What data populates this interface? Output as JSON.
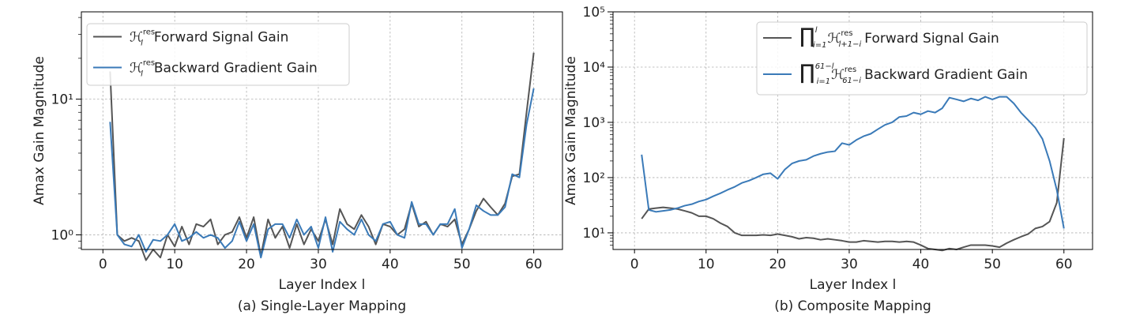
{
  "chart_data": [
    {
      "type": "line",
      "caption": "(a) Single-Layer Mapping",
      "xlabel": "Layer Index l",
      "ylabel": "Amax Gain Magnitude",
      "xlim": [
        -3,
        64
      ],
      "ylim": [
        0.78,
        44
      ],
      "yscale": "log",
      "xticks": [
        0,
        10,
        20,
        30,
        40,
        50,
        60
      ],
      "xtick_labels": [
        "0",
        "10",
        "20",
        "30",
        "40",
        "50",
        "60"
      ],
      "yticks": [
        1,
        10
      ],
      "ytick_labels": [
        "10⁰",
        "10¹"
      ],
      "grid": true,
      "legend_position": "top-left",
      "x": [
        1,
        2,
        3,
        4,
        5,
        6,
        7,
        8,
        9,
        10,
        11,
        12,
        13,
        14,
        15,
        16,
        17,
        18,
        19,
        20,
        21,
        22,
        23,
        24,
        25,
        26,
        27,
        28,
        29,
        30,
        31,
        32,
        33,
        34,
        35,
        36,
        37,
        38,
        39,
        40,
        41,
        42,
        43,
        44,
        45,
        46,
        47,
        48,
        49,
        50,
        51,
        52,
        53,
        54,
        55,
        56,
        57,
        58,
        59,
        60
      ],
      "series": [
        {
          "name": "H_l^res Forward Signal Gain",
          "legend_math": "ℋ",
          "legend_sub": "l",
          "legend_sup": "res",
          "legend_label": "Forward Signal Gain",
          "color": "#555555",
          "values": [
            16,
            1.0,
            0.9,
            0.95,
            0.9,
            0.65,
            0.78,
            0.68,
            1.0,
            0.82,
            1.15,
            0.85,
            1.2,
            1.15,
            1.3,
            0.85,
            1.0,
            1.05,
            1.35,
            0.95,
            1.35,
            0.7,
            1.3,
            0.95,
            1.15,
            0.8,
            1.2,
            0.85,
            1.1,
            0.9,
            1.3,
            0.85,
            1.55,
            1.2,
            1.1,
            1.4,
            1.15,
            0.85,
            1.2,
            1.15,
            1.0,
            1.1,
            1.7,
            1.15,
            1.25,
            1.0,
            1.2,
            1.15,
            1.3,
            0.85,
            1.1,
            1.5,
            1.85,
            1.6,
            1.4,
            1.7,
            2.7,
            2.8,
            8,
            22
          ]
        },
        {
          "name": "H_l^res Backward Gradient Gain",
          "legend_math": "ℋ",
          "legend_sub": "l",
          "legend_sup": "res",
          "legend_label": "Backward Gradient Gain",
          "color": "#3a7ab8",
          "values": [
            6.8,
            1.0,
            0.85,
            0.82,
            1.0,
            0.75,
            0.92,
            0.9,
            1.0,
            1.2,
            0.9,
            0.95,
            1.05,
            0.95,
            1.0,
            0.95,
            0.8,
            0.9,
            1.25,
            0.9,
            1.2,
            0.68,
            1.1,
            1.2,
            1.2,
            0.95,
            1.3,
            1.0,
            1.15,
            0.8,
            1.35,
            0.75,
            1.25,
            1.1,
            1.0,
            1.3,
            1.0,
            0.9,
            1.2,
            1.25,
            1.0,
            0.95,
            1.75,
            1.2,
            1.2,
            1.0,
            1.2,
            1.2,
            1.55,
            0.8,
            1.1,
            1.65,
            1.5,
            1.4,
            1.4,
            1.6,
            2.8,
            2.65,
            6.5,
            12
          ]
        }
      ]
    },
    {
      "type": "line",
      "caption": "(b) Composite Mapping",
      "xlabel": "Layer Index l",
      "ylabel": "Amax Gain Magnitude",
      "xlim": [
        -3,
        64
      ],
      "ylim": [
        5,
        100000
      ],
      "yscale": "log",
      "xticks": [
        0,
        10,
        20,
        30,
        40,
        50,
        60
      ],
      "xtick_labels": [
        "0",
        "10",
        "20",
        "30",
        "40",
        "50",
        "60"
      ],
      "yticks": [
        10,
        100,
        1000,
        10000,
        100000
      ],
      "ytick_labels": [
        "10¹",
        "10²",
        "10³",
        "10⁴",
        "10⁵"
      ],
      "grid": true,
      "legend_position": "top-right",
      "x": [
        1,
        2,
        3,
        4,
        5,
        6,
        7,
        8,
        9,
        10,
        11,
        12,
        13,
        14,
        15,
        16,
        17,
        18,
        19,
        20,
        21,
        22,
        23,
        24,
        25,
        26,
        27,
        28,
        29,
        30,
        31,
        32,
        33,
        34,
        35,
        36,
        37,
        38,
        39,
        40,
        41,
        42,
        43,
        44,
        45,
        46,
        47,
        48,
        49,
        50,
        51,
        52,
        53,
        54,
        55,
        56,
        57,
        58,
        59,
        60
      ],
      "series": [
        {
          "name": "∏ H_(l+1-i)^res Forward Signal Gain",
          "legend_math": "∏",
          "legend_sub": "i=1",
          "legend_sup": "l",
          "legend_term": "ℋ",
          "legend_term_sub": "l+1−i",
          "legend_term_sup": "res",
          "legend_label": "Forward Signal Gain",
          "color": "#555555",
          "values": [
            18,
            27,
            28,
            29,
            28,
            27,
            25,
            23,
            20,
            20,
            18,
            15,
            13,
            10,
            9,
            9,
            9,
            9.2,
            9,
            9.5,
            9,
            8.5,
            7.8,
            8.2,
            8,
            7.5,
            7.8,
            7.5,
            7.2,
            6.8,
            6.8,
            7.2,
            7,
            6.8,
            7,
            7,
            6.8,
            7,
            6.8,
            6,
            5.2,
            5,
            4.8,
            5.2,
            5,
            5.5,
            6,
            6,
            6,
            5.8,
            5.5,
            6.5,
            7.5,
            8.5,
            9.5,
            12,
            13,
            16,
            35,
            520
          ]
        },
        {
          "name": "∏ H_(61-i)^res Backward Gradient Gain",
          "legend_math": "∏",
          "legend_sub": "i=1",
          "legend_sup": "61−l",
          "legend_term": "ℋ",
          "legend_term_sub": "61−i",
          "legend_term_sup": "res",
          "legend_label": "Backward Gradient Gain",
          "color": "#3a7ab8",
          "values": [
            260,
            26,
            24,
            25,
            26,
            28,
            31,
            33,
            37,
            40,
            46,
            52,
            60,
            68,
            80,
            88,
            100,
            115,
            120,
            95,
            140,
            180,
            200,
            210,
            245,
            270,
            290,
            300,
            420,
            390,
            480,
            560,
            620,
            750,
            900,
            1000,
            1250,
            1300,
            1500,
            1400,
            1600,
            1500,
            1800,
            2800,
            2600,
            2400,
            2700,
            2500,
            2900,
            2600,
            2900,
            2900,
            2200,
            1500,
            1100,
            800,
            500,
            200,
            60,
            12
          ]
        }
      ]
    }
  ]
}
